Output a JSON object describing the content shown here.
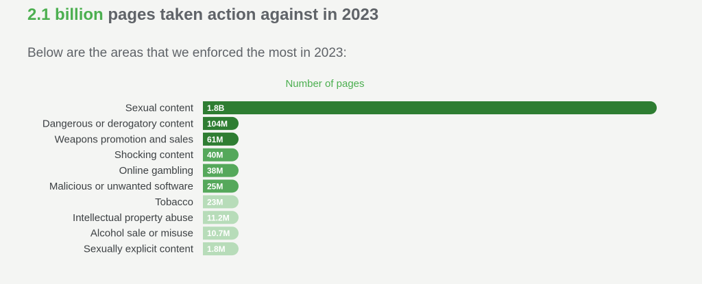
{
  "header": {
    "title_highlight": "2.1 billion",
    "title_rest": " pages taken action against in 2023",
    "subtitle": "Below are the areas that we enforced the most in 2023:"
  },
  "colors": {
    "accent": "#4caf50",
    "dark": "#2e7d32",
    "medium": "#55a85b",
    "light": "#b7dcb9"
  },
  "chart_data": {
    "type": "bar",
    "orientation": "horizontal",
    "xlabel": "Number of pages",
    "categories": [
      "Sexual content",
      "Dangerous or derogatory content",
      "Weapons promotion and sales",
      "Shocking content",
      "Online gambling",
      "Malicious or unwanted software",
      "Tobacco",
      "Intellectual property abuse",
      "Alcohol sale or misuse",
      "Sexually explicit content"
    ],
    "values": [
      1800000000,
      104000000,
      61000000,
      40000000,
      38000000,
      25000000,
      23000000,
      11200000,
      10700000,
      1800000
    ],
    "value_labels": [
      "1.8B",
      "104M",
      "61M",
      "40M",
      "38M",
      "25M",
      "23M",
      "11.2M",
      "10.7M",
      "1.8M"
    ],
    "bar_shades": [
      "dark",
      "dark",
      "dark",
      "medium",
      "medium",
      "medium",
      "light",
      "light",
      "light",
      "light"
    ],
    "grid": false,
    "legend": "none"
  }
}
